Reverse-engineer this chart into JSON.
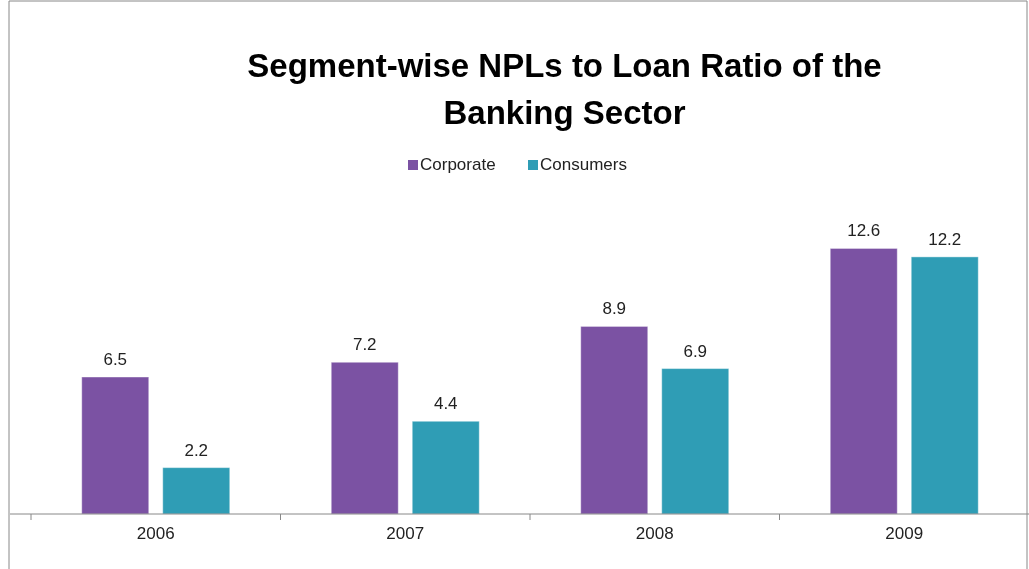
{
  "chart_data": {
    "type": "bar",
    "title": "Segment-wise NPLs to Loan Ratio of the Banking Sector",
    "categories": [
      "2006",
      "2007",
      "2008",
      "2009"
    ],
    "series": [
      {
        "name": "Corporate",
        "color": "#7b52a3",
        "values": [
          6.5,
          7.2,
          8.9,
          12.6
        ]
      },
      {
        "name": "Consumers",
        "color": "#2f9db5",
        "values": [
          2.2,
          4.4,
          6.9,
          12.2
        ]
      }
    ],
    "data_labels": true,
    "legend": "top"
  }
}
